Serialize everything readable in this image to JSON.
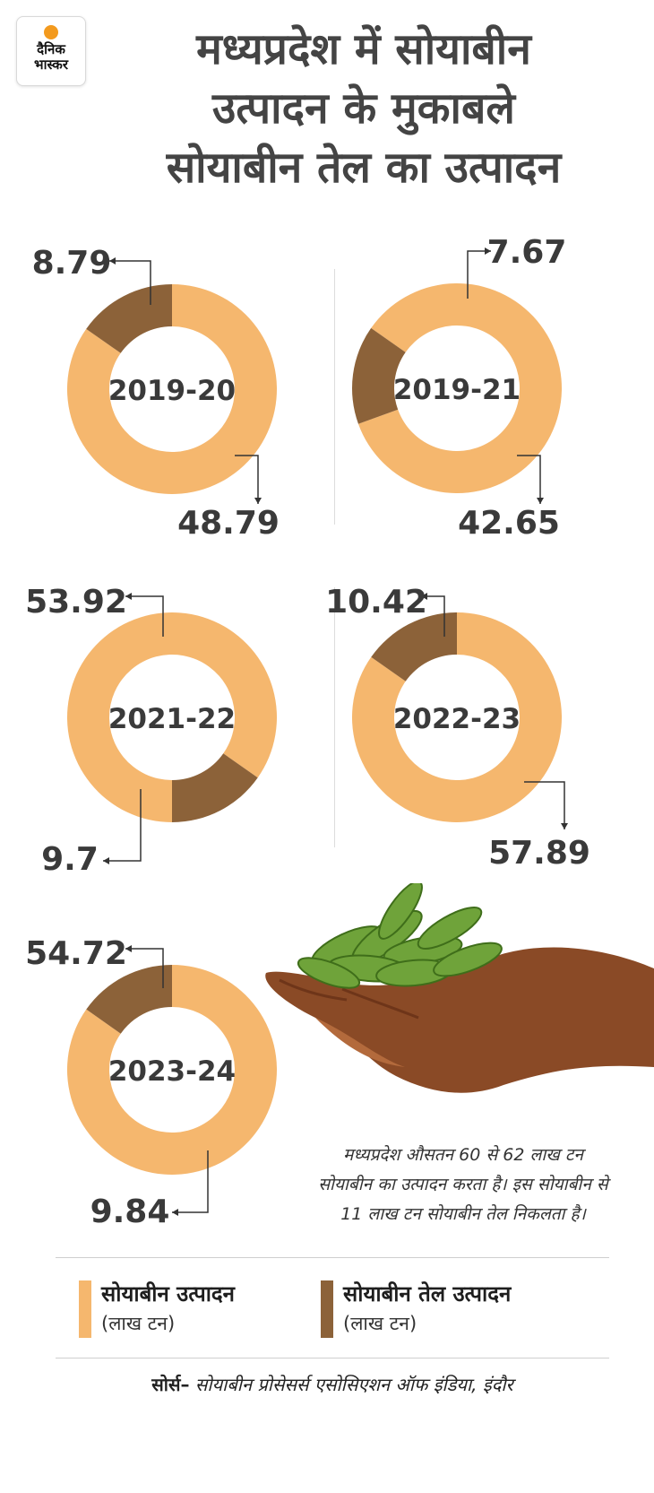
{
  "brand": {
    "line1": "दैनिक",
    "line2": "भास्कर"
  },
  "title": {
    "line1": "मध्यप्रदेश में सोयाबीन",
    "line2": "उत्पादन के मुकाबले",
    "line3": "सोयाबीन तेल का उत्पादन"
  },
  "colors": {
    "soybean": "#F5B76E",
    "oil": "#8C6239"
  },
  "chart_data": [
    {
      "type": "pie",
      "title": "2019-20",
      "series": [
        {
          "name": "सोयाबीन उत्पादन",
          "value": 48.79
        },
        {
          "name": "सोयाबीन तेल उत्पादन",
          "value": 8.79
        }
      ]
    },
    {
      "type": "pie",
      "title": "2019-21",
      "series": [
        {
          "name": "सोयाबीन उत्पादन",
          "value": 42.65
        },
        {
          "name": "सोयाबीन तेल उत्पादन",
          "value": 7.67
        }
      ]
    },
    {
      "type": "pie",
      "title": "2021-22",
      "series": [
        {
          "name": "सोयाबीन उत्पादन",
          "value": 53.92
        },
        {
          "name": "सोयाबीन तेल उत्पादन",
          "value": 9.7
        }
      ]
    },
    {
      "type": "pie",
      "title": "2022-23",
      "series": [
        {
          "name": "सोयाबीन उत्पादन",
          "value": 57.89
        },
        {
          "name": "सोयाबीन तेल उत्पादन",
          "value": 10.42
        }
      ]
    },
    {
      "type": "pie",
      "title": "2023-24",
      "series": [
        {
          "name": "सोयाबीन उत्पादन",
          "value": 54.72
        },
        {
          "name": "सोयाबीन तेल उत्पादन",
          "value": 9.84
        }
      ]
    }
  ],
  "note": "मध्यप्रदेश औसतन 60 से 62 लाख टन सोयाबीन का उत्पादन करता है। इस सोयाबीन से 11 लाख टन सोयाबीन तेल निकलता है।",
  "legend": {
    "soybean_label": "सोयाबीन उत्पादन",
    "oil_label": "सोयाबीन तेल उत्पादन",
    "unit": "(लाख टन)"
  },
  "source": {
    "label": "सोर्स–",
    "text": "सोयाबीन प्रोसेसर्स एसोसिएशन ऑफ इंडिया, इंदौर"
  }
}
